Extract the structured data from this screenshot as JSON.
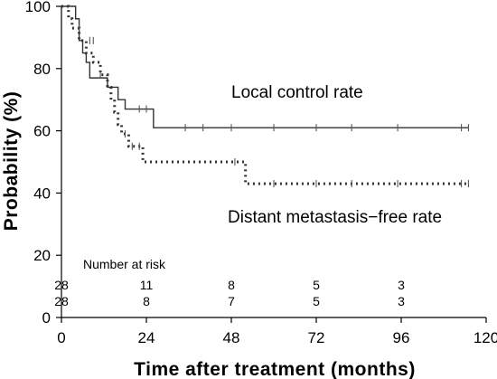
{
  "chart_data": {
    "type": "line",
    "subtype": "kaplan-meier",
    "title": "",
    "xlabel": "Time after treatment (months)",
    "ylabel": "Probability (%)",
    "xlim": [
      0,
      120
    ],
    "ylim": [
      0,
      100
    ],
    "xticks": [
      0,
      24,
      48,
      72,
      96,
      120
    ],
    "yticks": [
      0,
      20,
      40,
      60,
      80,
      100
    ],
    "grid": false,
    "series": [
      {
        "name": "Local control rate",
        "style": "solid",
        "steps": [
          [
            0,
            100
          ],
          [
            4,
            96
          ],
          [
            5,
            89
          ],
          [
            6,
            85
          ],
          [
            7,
            82
          ],
          [
            8,
            77
          ],
          [
            13,
            74
          ],
          [
            16,
            70
          ],
          [
            18,
            67
          ],
          [
            26,
            61
          ],
          [
            115,
            61
          ]
        ],
        "censors": [
          [
            22,
            67
          ],
          [
            24,
            67
          ],
          [
            35,
            61
          ],
          [
            40,
            61
          ],
          [
            48,
            61
          ],
          [
            60,
            61
          ],
          [
            72,
            61
          ],
          [
            82,
            61
          ],
          [
            95,
            61
          ],
          [
            113,
            61
          ],
          [
            115,
            61
          ]
        ]
      },
      {
        "name": "Distant metastasis-free rate",
        "style": "dotted",
        "steps": [
          [
            0,
            100
          ],
          [
            2,
            96
          ],
          [
            3,
            93
          ],
          [
            5,
            89
          ],
          [
            7,
            85
          ],
          [
            9,
            82
          ],
          [
            11,
            78
          ],
          [
            13,
            74
          ],
          [
            14,
            70
          ],
          [
            15,
            66
          ],
          [
            16,
            62
          ],
          [
            17,
            59
          ],
          [
            19,
            55
          ],
          [
            23,
            50
          ],
          [
            52,
            43
          ],
          [
            115,
            43
          ]
        ],
        "censors": [
          [
            5,
            93
          ],
          [
            8,
            89
          ],
          [
            9,
            89
          ],
          [
            11,
            78
          ],
          [
            18,
            59
          ],
          [
            20,
            55
          ],
          [
            22,
            55
          ],
          [
            49,
            50
          ],
          [
            60,
            43
          ],
          [
            72,
            43
          ],
          [
            82,
            43
          ],
          [
            95,
            43
          ],
          [
            113,
            43
          ],
          [
            115,
            43
          ]
        ]
      }
    ],
    "annotations": [
      {
        "text": "Local control rate"
      },
      {
        "text": "Distant metastasis−free rate"
      }
    ],
    "risk_table": {
      "title": "Number at risk",
      "times": [
        0,
        24,
        48,
        72,
        96
      ],
      "rows": [
        [
          "28",
          "11",
          "8",
          "5",
          "3"
        ],
        [
          "28",
          "8",
          "7",
          "5",
          "3"
        ]
      ]
    }
  }
}
